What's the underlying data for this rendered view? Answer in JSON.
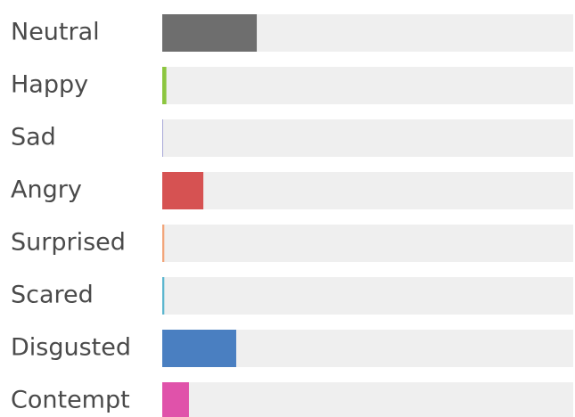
{
  "chart_data": {
    "type": "hbar",
    "categories": [
      "Neutral",
      "Happy",
      "Sad",
      "Angry",
      "Surprised",
      "Scared",
      "Disgusted",
      "Contempt"
    ],
    "values": [
      23,
      1,
      0.2,
      10,
      0.5,
      0.5,
      18,
      6.5
    ],
    "colors": [
      "#6e6e6e",
      "#8cc63f",
      "#a8a8d8",
      "#d65252",
      "#f2a57a",
      "#5cb6cf",
      "#4a7fc1",
      "#e052aa"
    ],
    "track_color": "#efefef",
    "xlim": [
      0,
      100
    ]
  }
}
